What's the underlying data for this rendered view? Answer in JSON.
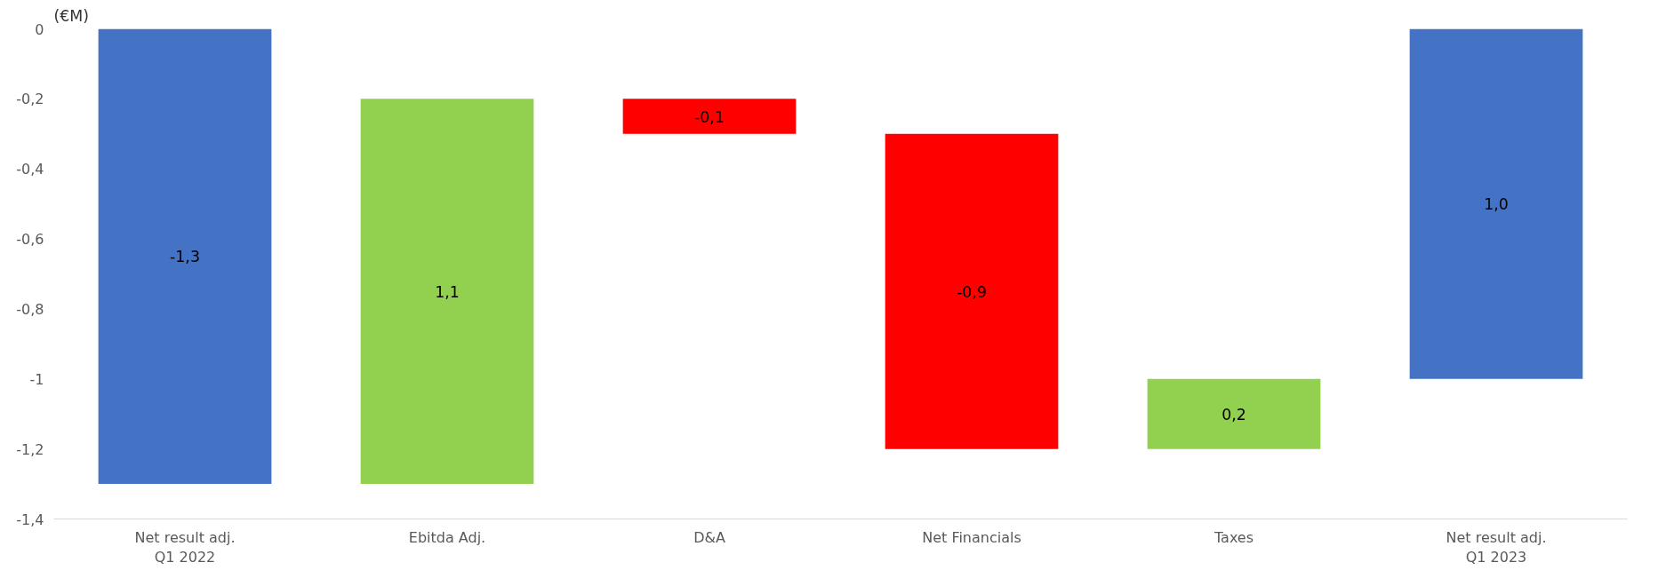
{
  "chart_data": {
    "type": "bar",
    "ylabel": "(€M)",
    "categories": [
      "Net result adj.\nQ1 2022",
      "Ebitda Adj.",
      "D&A",
      "Net Financials",
      "Taxes",
      "Net result adj.\nQ1 2023"
    ],
    "values": [
      -1.3,
      1.1,
      -0.1,
      -0.9,
      0.2,
      -1.0
    ],
    "base": [
      0,
      -1.3,
      -0.2,
      -0.3,
      -1.2,
      0
    ],
    "colors": [
      "#4472c4",
      "#92d050",
      "#ff0000",
      "#ff0000",
      "#92d050",
      "#4472c4"
    ],
    "value_labels": [
      "-1,3",
      "1,1",
      "-0,1",
      "-0,9",
      "0,2",
      "1,0"
    ],
    "ylim": [
      -1.4,
      0
    ],
    "yticks": [
      {
        "value": 0,
        "label": "0"
      },
      {
        "value": -0.2,
        "label": "-0,2"
      },
      {
        "value": -0.4,
        "label": "-0,4"
      },
      {
        "value": -0.6,
        "label": "-0,6"
      },
      {
        "value": -0.8,
        "label": "-0,8"
      },
      {
        "value": -1,
        "label": "-1"
      },
      {
        "value": -1.2,
        "label": "-1,2"
      },
      {
        "value": -1.4,
        "label": "-1,4"
      }
    ],
    "grid": false
  }
}
